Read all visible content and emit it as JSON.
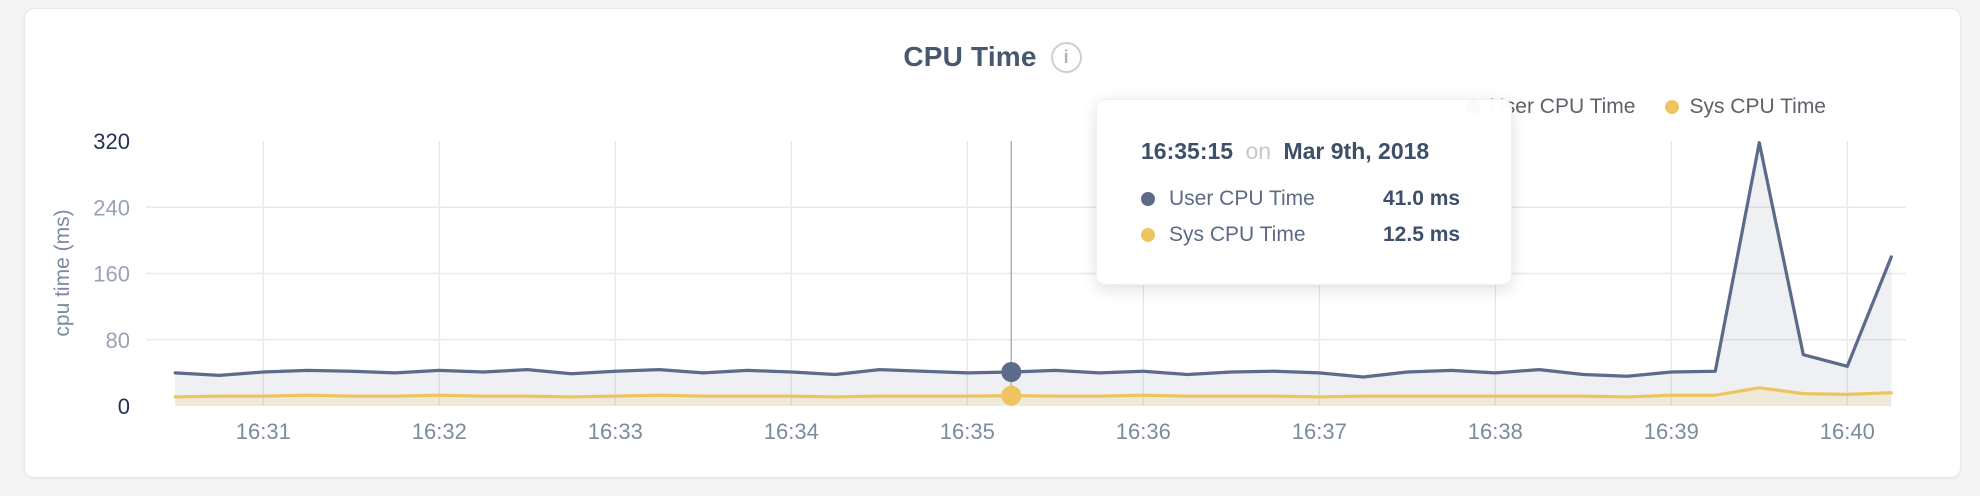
{
  "page": {
    "background": "#f4f4f5"
  },
  "card": {
    "title": "CPU Time",
    "info_icon": "i"
  },
  "legend": {
    "items": [
      {
        "label": "User CPU Time",
        "color": "#5b6b89"
      },
      {
        "label": "Sys CPU Time",
        "color": "#eec45f"
      }
    ]
  },
  "tooltip": {
    "time": "16:35:15",
    "connector": "on",
    "date": "Mar 9th, 2018",
    "rows": [
      {
        "label": "User CPU Time",
        "value": "41.0 ms",
        "color": "#5b6b89"
      },
      {
        "label": "Sys CPU Time",
        "value": "12.5 ms",
        "color": "#eec45f"
      }
    ]
  },
  "colors": {
    "grid": "#e9e9e9",
    "crosshair": "#b0b0b0",
    "y_tick_major": "#22344f",
    "y_tick_minor": "#99a3b4",
    "x_tick": "#7d8aa0"
  },
  "chart_data": {
    "type": "area",
    "title": "CPU Time",
    "ylabel": "cpu time (ms)",
    "ylim": [
      0,
      320
    ],
    "y_ticks": [
      0,
      80,
      160,
      240,
      320
    ],
    "x_ticks": [
      "16:31",
      "16:32",
      "16:33",
      "16:34",
      "16:35",
      "16:36",
      "16:37",
      "16:38",
      "16:39",
      "16:40"
    ],
    "x_domain": [
      "16:30:20",
      "16:40:20"
    ],
    "grid": true,
    "legend_position": "top-right",
    "x": [
      "16:30:30",
      "16:30:45",
      "16:31:00",
      "16:31:15",
      "16:31:30",
      "16:31:45",
      "16:32:00",
      "16:32:15",
      "16:32:30",
      "16:32:45",
      "16:33:00",
      "16:33:15",
      "16:33:30",
      "16:33:45",
      "16:34:00",
      "16:34:15",
      "16:34:30",
      "16:34:45",
      "16:35:00",
      "16:35:15",
      "16:35:30",
      "16:35:45",
      "16:36:00",
      "16:36:15",
      "16:36:30",
      "16:36:45",
      "16:37:00",
      "16:37:15",
      "16:37:30",
      "16:37:45",
      "16:38:00",
      "16:38:15",
      "16:38:30",
      "16:38:45",
      "16:39:00",
      "16:39:15",
      "16:39:30",
      "16:39:45",
      "16:40:00",
      "16:40:15"
    ],
    "series": [
      {
        "name": "User CPU Time",
        "color": "#5b6b89",
        "fill": "rgba(91,107,137,0.10)",
        "values": [
          40,
          37,
          41,
          43,
          42,
          40,
          43,
          41,
          44,
          39,
          42,
          44,
          40,
          43,
          41,
          38,
          44,
          42,
          40,
          41,
          43,
          40,
          42,
          38,
          41,
          42,
          40,
          35,
          41,
          43,
          40,
          44,
          38,
          36,
          41,
          42,
          318,
          62,
          48,
          180
        ]
      },
      {
        "name": "Sys CPU Time",
        "color": "#eec45f",
        "fill": "rgba(238,196,95,0.16)",
        "values": [
          11,
          12,
          12,
          13,
          12,
          12,
          13,
          12,
          12,
          11,
          12,
          13,
          12,
          12,
          12,
          11,
          12,
          12,
          12,
          12.5,
          12,
          12,
          13,
          12,
          12,
          12,
          11,
          12,
          12,
          12,
          12,
          12,
          12,
          11,
          13,
          13,
          22,
          15,
          14,
          16
        ]
      }
    ],
    "highlight": {
      "x": "16:35:15",
      "index": 19,
      "user_value_ms": 41.0,
      "sys_value_ms": 12.5
    }
  }
}
